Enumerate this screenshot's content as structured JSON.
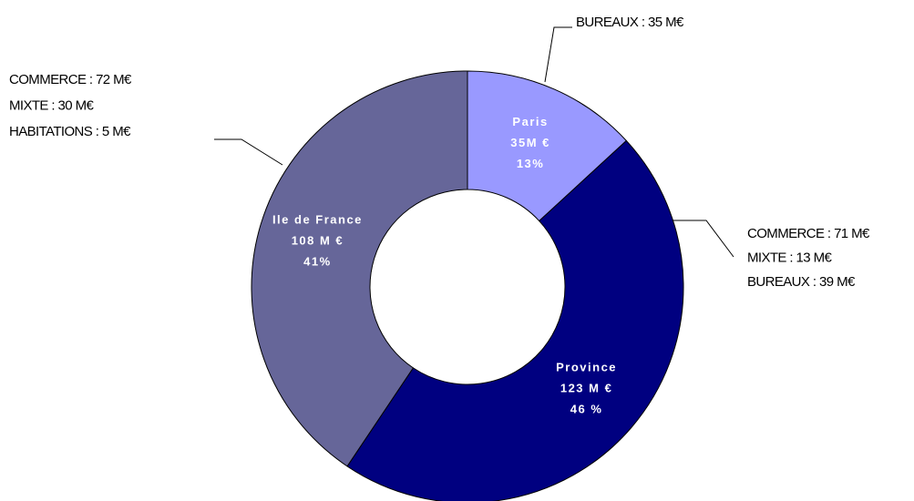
{
  "chart_data": {
    "type": "donut",
    "categories": [
      "Paris",
      "Province",
      "Ile de France"
    ],
    "values": [
      35,
      123,
      108
    ],
    "value_labels": [
      "35M €",
      "123 M €",
      "108 M €"
    ],
    "percent_values": [
      13,
      46,
      41
    ],
    "percent_labels": [
      "13%",
      "46 %",
      "41%"
    ],
    "colors": [
      "#9999ff",
      "#000080",
      "#666699"
    ],
    "callouts": [
      [
        "BUREAUX : 35 M€"
      ],
      [
        "COMMERCE : 71 M€",
        "MIXTE : 13 M€",
        "BUREAUX : 39 M€"
      ],
      [
        "COMMERCE : 72 M€",
        "MIXTE : 30 M€",
        "HABITATIONS : 5 M€"
      ]
    ]
  }
}
